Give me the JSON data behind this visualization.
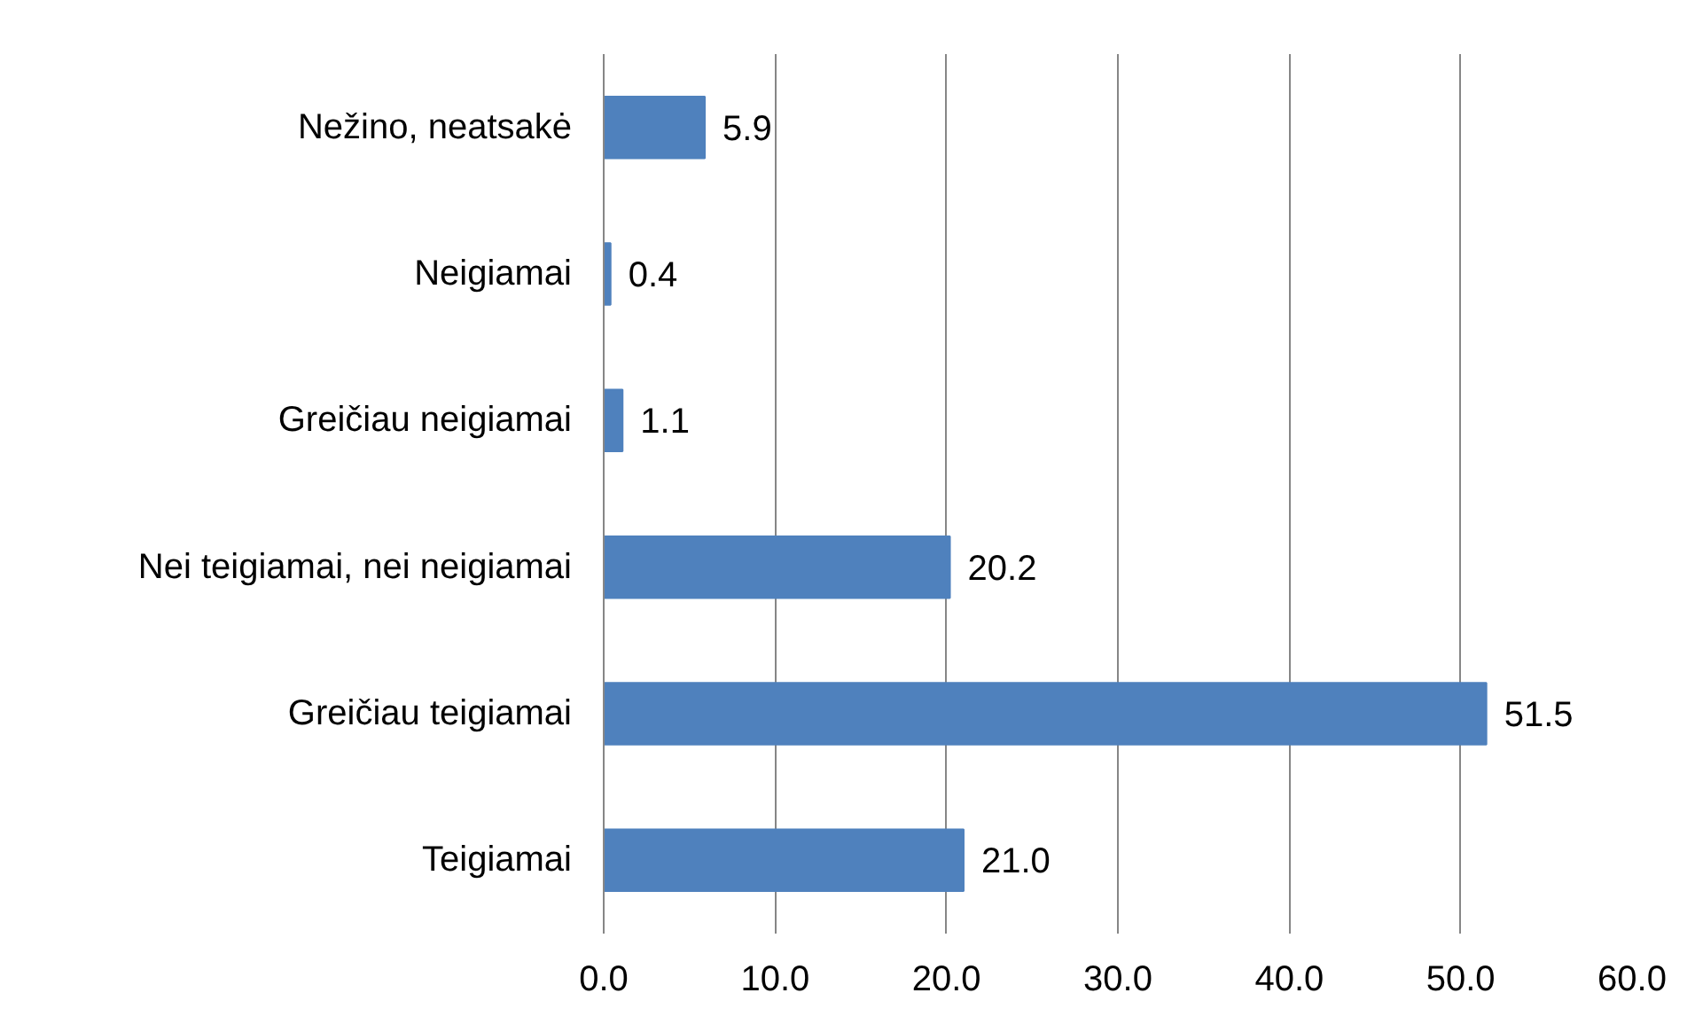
{
  "chart_data": {
    "type": "bar",
    "orientation": "horizontal",
    "categories": [
      "Nežino, neatsakė",
      "Neigiamai",
      "Greičiau neigiamai",
      "Nei teigiamai, nei neigiamai",
      "Greičiau teigiamai",
      "Teigiamai"
    ],
    "values": [
      5.9,
      0.4,
      1.1,
      20.2,
      51.5,
      21.0
    ],
    "value_labels": [
      "5.9",
      "0.4",
      "1.1",
      "20.2",
      "51.5",
      "21.0"
    ],
    "color": "#4f81bd",
    "xlim": [
      0,
      60
    ],
    "xticks": [
      {
        "value": 0,
        "label": "0.0"
      },
      {
        "value": 10,
        "label": "10.0"
      },
      {
        "value": 20,
        "label": "20.0"
      },
      {
        "value": 30,
        "label": "30.0"
      },
      {
        "value": 40,
        "label": "40.0"
      },
      {
        "value": 50,
        "label": "50.0"
      },
      {
        "value": 60,
        "label": "60.0"
      }
    ],
    "grid": "x"
  }
}
